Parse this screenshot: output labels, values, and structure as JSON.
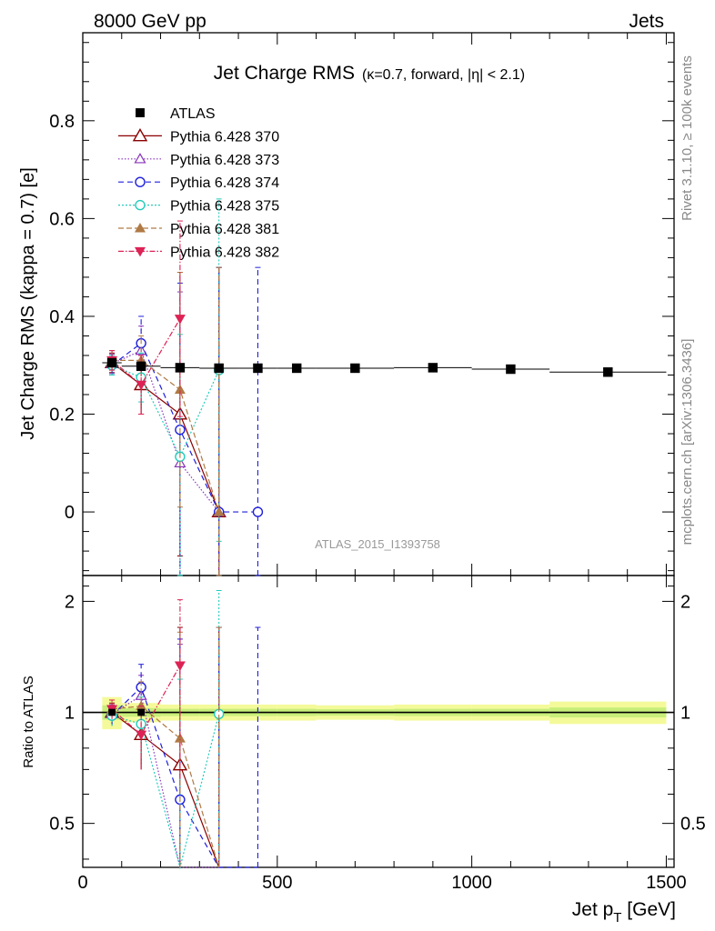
{
  "header": {
    "left": "8000 GeV pp",
    "right": "Jets",
    "rivet": "Rivet 3.1.10, ≥ 100k events",
    "mcplots": "mcplots.cern.ch [arXiv:1306.3436]"
  },
  "chart_data": {
    "type": "scatter",
    "title": "Jet Charge RMS",
    "title_sub": "(κ=0.7, forward, |η| < 2.1)",
    "analysis_label": "ATLAS_2015_I1393758",
    "xlabel_main": "Jet p",
    "xlabel_sub": "T",
    "xlabel_unit": " [GeV]",
    "ylabel": "Jet Charge RMS (kappa = 0.7) [e]",
    "ratio_ylabel": "Ratio to ATLAS",
    "xlim": [
      0,
      1520
    ],
    "ylim": [
      -0.13,
      0.98
    ],
    "ratio_ylim": [
      0.38,
      2.35
    ],
    "x_ticks": [
      0,
      500,
      1000,
      1500
    ],
    "x_tick_labels": [
      "0",
      "500",
      "1000",
      "1500"
    ],
    "y_ticks": [
      0,
      0.2,
      0.4,
      0.6,
      0.8
    ],
    "y_tick_labels": [
      "0",
      "0.2",
      "0.4",
      "0.6",
      "0.8"
    ],
    "ratio_ticks": [
      0.5,
      1,
      2
    ],
    "ratio_tick_labels": [
      "0.5",
      "1",
      "2"
    ],
    "grid": false,
    "legend_position": "top-left",
    "atlas": {
      "name": "ATLAS",
      "color": "#000000",
      "x": [
        75,
        150,
        250,
        350,
        450,
        550,
        700,
        900,
        1100,
        1350
      ],
      "xerr": [
        25,
        50,
        50,
        50,
        50,
        50,
        100,
        100,
        100,
        150
      ],
      "y": [
        0.305,
        0.298,
        0.295,
        0.294,
        0.294,
        0.294,
        0.294,
        0.295,
        0.292,
        0.286
      ],
      "rel_band": [
        0.1,
        0.06,
        0.05,
        0.05,
        0.05,
        0.05,
        0.045,
        0.05,
        0.05,
        0.07
      ]
    },
    "series": [
      {
        "name": "Pythia 6.428 370",
        "color": "#8b0000",
        "marker": "triangle-open",
        "dash": "",
        "offset": 0,
        "x": [
          75,
          150,
          250,
          350
        ],
        "y": [
          0.305,
          0.26,
          0.2,
          0.0
        ],
        "err": [
          0.02,
          0.06,
          0.29,
          0.5
        ],
        "ratio": [
          1.0,
          0.87,
          0.72,
          0.0
        ],
        "ratio_err": [
          0.06,
          0.17,
          0.98,
          1.7
        ]
      },
      {
        "name": "Pythia 6.428 373",
        "color": "#8833bb",
        "marker": "triangle-open-small",
        "dash": "1.5,2",
        "offset": 0,
        "x": [
          75,
          150,
          250,
          350
        ],
        "y": [
          0.303,
          0.33,
          0.1,
          0.0
        ],
        "err": [
          0.02,
          0.05,
          0.35,
          0.5
        ],
        "ratio": [
          0.99,
          1.11,
          0.33,
          0.0
        ],
        "ratio_err": [
          0.06,
          0.15,
          1.2,
          1.7
        ]
      },
      {
        "name": "Pythia 6.428 374",
        "color": "#1f1fdd",
        "marker": "circle-open",
        "dash": "6,4",
        "offset": 0,
        "x": [
          75,
          150,
          250,
          350,
          450
        ],
        "y": [
          0.3,
          0.345,
          0.168,
          0.0,
          0.0
        ],
        "err": [
          0.02,
          0.055,
          0.3,
          0.5,
          0.5
        ],
        "ratio": [
          0.98,
          1.17,
          0.58,
          0.0,
          0.0
        ],
        "ratio_err": [
          0.06,
          0.18,
          1.0,
          1.7,
          1.7
        ]
      },
      {
        "name": "Pythia 6.428 375",
        "color": "#22ccbb",
        "marker": "circle-open",
        "dash": "2,2",
        "offset": 0,
        "x": [
          75,
          150,
          250,
          350
        ],
        "y": [
          0.3,
          0.275,
          0.113,
          0.29
        ],
        "err": [
          0.02,
          0.05,
          0.25,
          0.35
        ],
        "ratio": [
          0.98,
          0.93,
          0.38,
          0.99
        ],
        "ratio_err": [
          0.06,
          0.17,
          0.85,
          1.15
        ]
      },
      {
        "name": "Pythia 6.428 381",
        "color": "#b07a45",
        "marker": "triangle-filled",
        "dash": "6,3",
        "offset": 0,
        "x": [
          75,
          150,
          250,
          350
        ],
        "y": [
          0.31,
          0.31,
          0.25,
          0.0
        ],
        "err": [
          0.02,
          0.05,
          0.24,
          0.5
        ],
        "ratio": [
          1.02,
          1.04,
          0.85,
          0.0
        ],
        "ratio_err": [
          0.06,
          0.17,
          0.8,
          1.7
        ]
      },
      {
        "name": "Pythia 6.428 382",
        "color": "#dd2255",
        "marker": "triangle-down-filled",
        "dash": "6,2,1.5,2",
        "offset": 0,
        "x": [
          75,
          150,
          250
        ],
        "y": [
          0.31,
          0.26,
          0.395
        ],
        "err": [
          0.02,
          0.06,
          0.2
        ],
        "ratio": [
          1.02,
          0.87,
          1.34
        ],
        "ratio_err": [
          0.06,
          0.17,
          0.68
        ]
      }
    ]
  }
}
